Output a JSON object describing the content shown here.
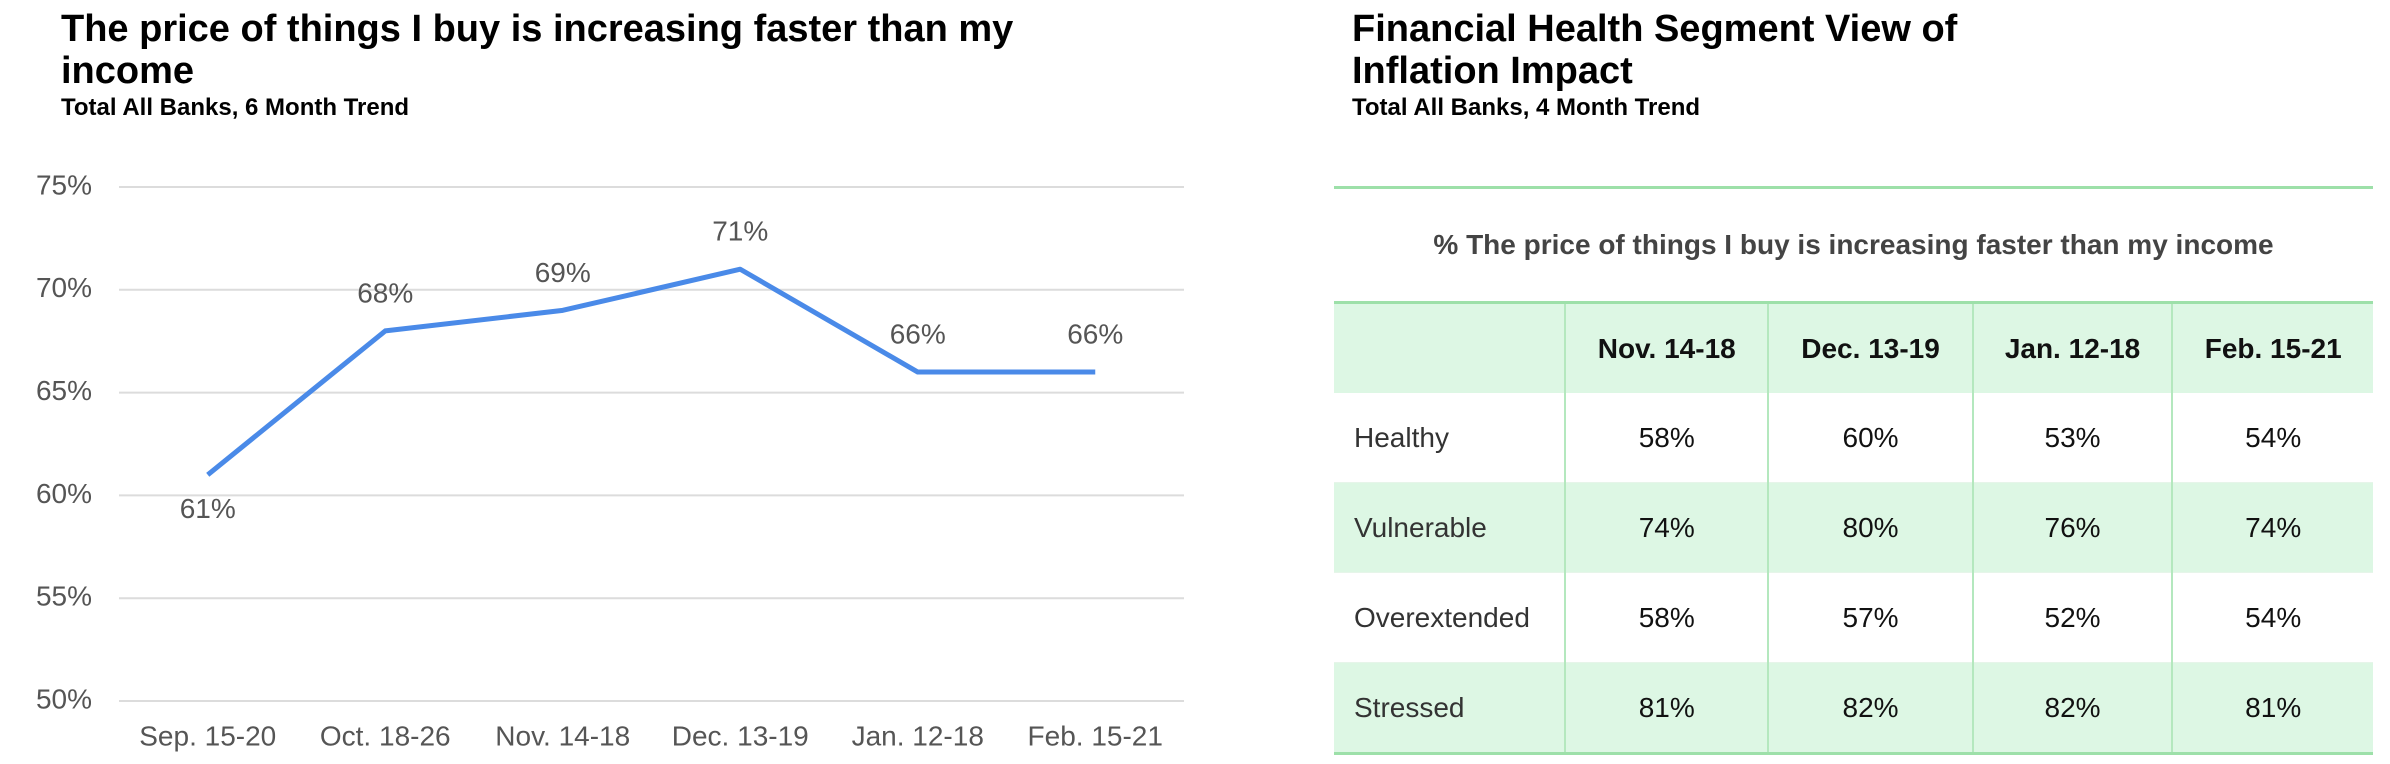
{
  "chart_data": {
    "type": "line",
    "title": "The price of things I buy is increasing faster than my income",
    "subtitle": "Total All Banks, 6 Month Trend",
    "categories": [
      "Sep. 15-20",
      "Oct. 18-26",
      "Nov. 14-18",
      "Dec. 13-19",
      "Jan. 12-18",
      "Feb. 15-21"
    ],
    "values": [
      61,
      68,
      69,
      71,
      66,
      66
    ],
    "value_labels": [
      "61%",
      "68%",
      "69%",
      "71%",
      "66%",
      "66%"
    ],
    "color": "#4a8ae8",
    "ylim": [
      50,
      75
    ],
    "yticks": [
      {
        "value": 50,
        "label": "50%"
      },
      {
        "value": 55,
        "label": "55%"
      },
      {
        "value": 60,
        "label": "60%"
      },
      {
        "value": 65,
        "label": "65%"
      },
      {
        "value": 70,
        "label": "70%"
      },
      {
        "value": 75,
        "label": "75%"
      }
    ],
    "grid": true
  },
  "table": {
    "title": "Financial Health Segment View of Inflation Impact",
    "subtitle": "Total All Banks, 4 Month Trend",
    "caption": "% The price of things I buy is increasing faster than my income",
    "columns": [
      "Nov. 14-18",
      "Dec. 13-19",
      "Jan. 12-18",
      "Feb. 15-21"
    ],
    "rows": [
      [
        "Healthy",
        "58%",
        "60%",
        "53%",
        "54%"
      ],
      [
        "Vulnerable",
        "74%",
        "80%",
        "76%",
        "74%"
      ],
      [
        "Overextended",
        "58%",
        "57%",
        "52%",
        "54%"
      ],
      [
        "Stressed",
        "81%",
        "82%",
        "82%",
        "81%"
      ]
    ]
  }
}
